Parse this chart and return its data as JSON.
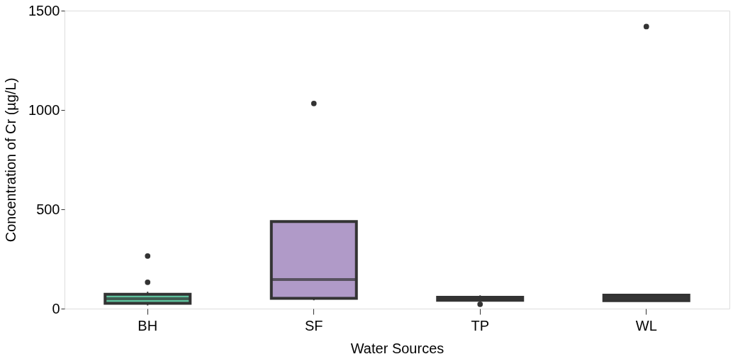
{
  "chart_data": {
    "type": "box",
    "xlabel": "Water Sources",
    "ylabel": "Concentration of Cr (µg/L)",
    "categories": [
      "BH",
      "SF",
      "TP",
      "WL"
    ],
    "colors": [
      "#5fc09c",
      "#b09ac8",
      "#3a3a3a",
      "#3a3a3a"
    ],
    "boxes": [
      {
        "low": 16,
        "q1": 27,
        "median": 50,
        "q3": 72,
        "high": 85,
        "outliers": [
          133,
          265
        ]
      },
      {
        "low": 42,
        "q1": 52,
        "median": 146,
        "q3": 438,
        "high": 438,
        "outliers": [
          1033
        ]
      },
      {
        "low": 38,
        "q1": 42,
        "median": 49,
        "q3": 57,
        "high": 67,
        "outliers": [
          22
        ]
      },
      {
        "low": 36,
        "q1": 40,
        "median": 55,
        "q3": 68,
        "high": 72,
        "outliers": [
          1420
        ]
      }
    ],
    "ylim": [
      0,
      1500
    ],
    "yticks": [
      0,
      500,
      1000,
      1500
    ],
    "grid": false
  }
}
